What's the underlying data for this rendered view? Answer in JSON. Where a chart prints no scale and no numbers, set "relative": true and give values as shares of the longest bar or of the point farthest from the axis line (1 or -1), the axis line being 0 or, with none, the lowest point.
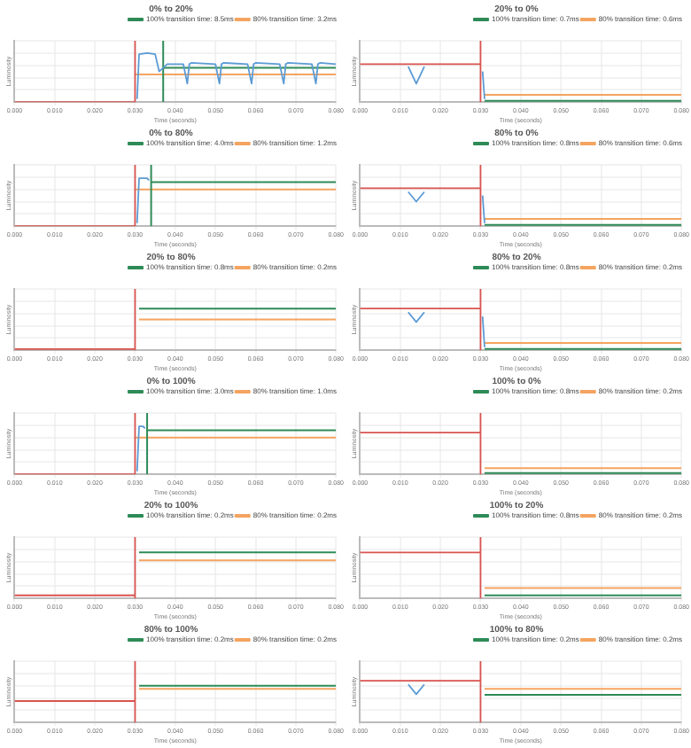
{
  "chart_data": [
    {
      "type": "line",
      "title": "0% to 20%",
      "xlabel": "Time (seconds)",
      "ylabel": "Luminosity",
      "relative": true,
      "grid": true,
      "legend": "top right",
      "marker": "none",
      "line_style": "solid",
      "xlim": [
        0,
        0.08
      ],
      "xticks": [
        {
          "value": 0,
          "label": "0.000"
        },
        {
          "value": 0.01,
          "label": "0.010"
        },
        {
          "value": 0.02,
          "label": "0.020"
        },
        {
          "value": 0.03,
          "label": "0.030"
        },
        {
          "value": 0.04,
          "label": "0.040"
        },
        {
          "value": 0.05,
          "label": "0.050"
        },
        {
          "value": 0.06,
          "label": "0.060"
        },
        {
          "value": 0.07,
          "label": "0.070"
        },
        {
          "value": 0.08,
          "label": "0.080"
        }
      ],
      "series": [
        {
          "color": "#5b9bd5",
          "x": [
            0.0305,
            0.031,
            0.033,
            0.035,
            0.036,
            0.038,
            0.042,
            0.043,
            0.0435,
            0.044,
            0.05,
            0.051,
            0.0515,
            0.052,
            0.058,
            0.059,
            0.0595,
            0.06,
            0.066,
            0.067,
            0.0675,
            0.068,
            0.074,
            0.075,
            0.0755,
            0.076,
            0.08
          ],
          "values": [
            0.05,
            0.78,
            0.8,
            0.78,
            0.5,
            0.62,
            0.62,
            0.3,
            0.62,
            0.64,
            0.62,
            0.3,
            0.62,
            0.64,
            0.62,
            0.3,
            0.62,
            0.64,
            0.62,
            0.3,
            0.62,
            0.64,
            0.62,
            0.3,
            0.62,
            0.64,
            0.62
          ]
        },
        {
          "color": "#d9534f",
          "x": [
            0,
            0.03,
            0.03
          ],
          "values": [
            0,
            0,
            1
          ]
        },
        {
          "name": "100% transition time: 8.5ms",
          "color": "#2e8b57",
          "x": [
            0.037,
            0.037,
            0.037,
            0.08
          ],
          "values": [
            0,
            1,
            0.56,
            0.56
          ]
        },
        {
          "name": "80% transition time: 3.2ms",
          "color": "#f4a460",
          "x": [
            0.03,
            0.08
          ],
          "values": [
            0.45,
            0.45
          ]
        }
      ]
    },
    {
      "type": "line",
      "title": "20% to 0%",
      "xlabel": "Time (seconds)",
      "ylabel": "Luminosity",
      "relative": true,
      "grid": true,
      "legend": "top right",
      "marker": "none",
      "line_style": "solid",
      "xlim": [
        0,
        0.08
      ],
      "xticks": [
        {
          "value": 0,
          "label": "0.000"
        },
        {
          "value": 0.01,
          "label": "0.010"
        },
        {
          "value": 0.02,
          "label": "0.020"
        },
        {
          "value": 0.03,
          "label": "0.030"
        },
        {
          "value": 0.04,
          "label": "0.040"
        },
        {
          "value": 0.05,
          "label": "0.050"
        },
        {
          "value": 0.06,
          "label": "0.060"
        },
        {
          "value": 0.07,
          "label": "0.070"
        },
        {
          "value": 0.08,
          "label": "0.080"
        }
      ],
      "series": [
        {
          "color": "#5b9bd5",
          "x": [
            0.012,
            0.014,
            0.016,
            0.02,
            0.0305,
            0.031
          ],
          "values": [
            0.58,
            0.3,
            0.58,
            null,
            0.5,
            0.05
          ]
        },
        {
          "color": "#d9534f",
          "x": [
            0,
            0.03,
            0.03,
            0.03
          ],
          "values": [
            0.62,
            0.62,
            0,
            1
          ]
        },
        {
          "name": "100% transition time: 0.7ms",
          "color": "#2e8b57",
          "x": [
            0.031,
            0.08
          ],
          "values": [
            0.02,
            0.02
          ]
        },
        {
          "name": "80% transition time: 0.6ms",
          "color": "#f4a460",
          "x": [
            0.031,
            0.08
          ],
          "values": [
            0.12,
            0.12
          ]
        }
      ]
    },
    {
      "type": "line",
      "title": "0% to 80%",
      "xlabel": "Time (seconds)",
      "ylabel": "Luminosity",
      "relative": true,
      "grid": true,
      "legend": "top right",
      "marker": "none",
      "line_style": "solid",
      "xlim": [
        0,
        0.08
      ],
      "xticks": [
        {
          "value": 0,
          "label": "0.000"
        },
        {
          "value": 0.01,
          "label": "0.010"
        },
        {
          "value": 0.02,
          "label": "0.020"
        },
        {
          "value": 0.03,
          "label": "0.030"
        },
        {
          "value": 0.04,
          "label": "0.040"
        },
        {
          "value": 0.05,
          "label": "0.050"
        },
        {
          "value": 0.06,
          "label": "0.060"
        },
        {
          "value": 0.07,
          "label": "0.070"
        },
        {
          "value": 0.08,
          "label": "0.080"
        }
      ],
      "series": [
        {
          "color": "#5b9bd5",
          "x": [
            0.0305,
            0.031,
            0.033,
            0.0335
          ],
          "values": [
            0.05,
            0.78,
            0.78,
            0.75
          ]
        },
        {
          "color": "#d9534f",
          "x": [
            0,
            0.03,
            0.03
          ],
          "values": [
            0,
            0,
            1
          ]
        },
        {
          "name": "100% transition time: 4.0ms",
          "color": "#2e8b57",
          "x": [
            0.034,
            0.034,
            0.034,
            0.08
          ],
          "values": [
            0,
            1,
            0.72,
            0.72
          ]
        },
        {
          "name": "80% transition time: 1.2ms",
          "color": "#f4a460",
          "x": [
            0.03,
            0.08
          ],
          "values": [
            0.6,
            0.6
          ]
        }
      ]
    },
    {
      "type": "line",
      "title": "80% to 0%",
      "xlabel": "Time (seconds)",
      "ylabel": "Luminosity",
      "relative": true,
      "grid": true,
      "legend": "top right",
      "marker": "none",
      "line_style": "solid",
      "xlim": [
        0,
        0.08
      ],
      "xticks": [
        {
          "value": 0,
          "label": "0.000"
        },
        {
          "value": 0.01,
          "label": "0.010"
        },
        {
          "value": 0.02,
          "label": "0.020"
        },
        {
          "value": 0.03,
          "label": "0.030"
        },
        {
          "value": 0.04,
          "label": "0.040"
        },
        {
          "value": 0.05,
          "label": "0.050"
        },
        {
          "value": 0.06,
          "label": "0.060"
        },
        {
          "value": 0.07,
          "label": "0.070"
        },
        {
          "value": 0.08,
          "label": "0.080"
        }
      ],
      "series": [
        {
          "color": "#5b9bd5",
          "x": [
            0.012,
            0.014,
            0.016,
            0.02,
            0.0305,
            0.031
          ],
          "values": [
            0.56,
            0.4,
            0.56,
            null,
            0.5,
            0.05
          ]
        },
        {
          "color": "#d9534f",
          "x": [
            0,
            0.03,
            0.03,
            0.03
          ],
          "values": [
            0.62,
            0.62,
            0,
            1
          ]
        },
        {
          "name": "100% transition time: 0.8ms",
          "color": "#2e8b57",
          "x": [
            0.031,
            0.08
          ],
          "values": [
            0.02,
            0.02
          ]
        },
        {
          "name": "80% transition time: 0.6ms",
          "color": "#f4a460",
          "x": [
            0.031,
            0.08
          ],
          "values": [
            0.12,
            0.12
          ]
        }
      ]
    },
    {
      "type": "line",
      "title": "20% to 80%",
      "xlabel": "Time (seconds)",
      "ylabel": "Luminosity",
      "relative": true,
      "grid": true,
      "legend": "top right",
      "marker": "none",
      "line_style": "solid",
      "xlim": [
        0,
        0.08
      ],
      "xticks": [
        {
          "value": 0,
          "label": "0.000"
        },
        {
          "value": 0.01,
          "label": "0.010"
        },
        {
          "value": 0.02,
          "label": "0.020"
        },
        {
          "value": 0.03,
          "label": "0.030"
        },
        {
          "value": 0.04,
          "label": "0.040"
        },
        {
          "value": 0.05,
          "label": "0.050"
        },
        {
          "value": 0.06,
          "label": "0.060"
        },
        {
          "value": 0.07,
          "label": "0.070"
        },
        {
          "value": 0.08,
          "label": "0.080"
        }
      ],
      "series": [
        {
          "color": "#d9534f",
          "x": [
            0,
            0.03,
            0.03,
            0.03
          ],
          "values": [
            0.02,
            0.02,
            0,
            1
          ]
        },
        {
          "name": "100% transition time: 0.8ms",
          "color": "#2e8b57",
          "x": [
            0.031,
            0.08
          ],
          "values": [
            0.68,
            0.68
          ]
        },
        {
          "name": "80% transition time: 0.2ms",
          "color": "#f4a460",
          "x": [
            0.031,
            0.08
          ],
          "values": [
            0.5,
            0.5
          ]
        }
      ]
    },
    {
      "type": "line",
      "title": "80% to 20%",
      "xlabel": "Time (seconds)",
      "ylabel": "Luminosity",
      "relative": true,
      "grid": true,
      "legend": "top right",
      "marker": "none",
      "line_style": "solid",
      "xlim": [
        0,
        0.08
      ],
      "xticks": [
        {
          "value": 0,
          "label": "0.000"
        },
        {
          "value": 0.01,
          "label": "0.010"
        },
        {
          "value": 0.02,
          "label": "0.020"
        },
        {
          "value": 0.03,
          "label": "0.030"
        },
        {
          "value": 0.04,
          "label": "0.040"
        },
        {
          "value": 0.05,
          "label": "0.050"
        },
        {
          "value": 0.06,
          "label": "0.060"
        },
        {
          "value": 0.07,
          "label": "0.070"
        },
        {
          "value": 0.08,
          "label": "0.080"
        }
      ],
      "series": [
        {
          "color": "#5b9bd5",
          "x": [
            0.012,
            0.014,
            0.016,
            0.02,
            0.0305,
            0.031
          ],
          "values": [
            0.62,
            0.46,
            0.62,
            null,
            0.55,
            0.05
          ]
        },
        {
          "color": "#d9534f",
          "x": [
            0,
            0.03,
            0.03,
            0.03
          ],
          "values": [
            0.68,
            0.68,
            0,
            1
          ]
        },
        {
          "name": "100% transition time: 0.8ms",
          "color": "#2e8b57",
          "x": [
            0.031,
            0.08
          ],
          "values": [
            0.02,
            0.02
          ]
        },
        {
          "name": "80% transition time: 0.2ms",
          "color": "#f4a460",
          "x": [
            0.031,
            0.08
          ],
          "values": [
            0.12,
            0.12
          ]
        }
      ]
    },
    {
      "type": "line",
      "title": "0% to 100%",
      "xlabel": "Time (seconds)",
      "ylabel": "Luminosity",
      "relative": true,
      "grid": true,
      "legend": "top right",
      "marker": "none",
      "line_style": "solid",
      "xlim": [
        0,
        0.08
      ],
      "xticks": [
        {
          "value": 0,
          "label": "0.000"
        },
        {
          "value": 0.01,
          "label": "0.010"
        },
        {
          "value": 0.02,
          "label": "0.020"
        },
        {
          "value": 0.03,
          "label": "0.030"
        },
        {
          "value": 0.04,
          "label": "0.040"
        },
        {
          "value": 0.05,
          "label": "0.050"
        },
        {
          "value": 0.06,
          "label": "0.060"
        },
        {
          "value": 0.07,
          "label": "0.070"
        },
        {
          "value": 0.08,
          "label": "0.080"
        }
      ],
      "series": [
        {
          "color": "#5b9bd5",
          "x": [
            0.0305,
            0.031,
            0.032,
            0.0325
          ],
          "values": [
            0.05,
            0.78,
            0.78,
            0.75
          ]
        },
        {
          "color": "#d9534f",
          "x": [
            0,
            0.03,
            0.03
          ],
          "values": [
            0,
            0,
            1
          ]
        },
        {
          "name": "100% transition time: 3.0ms",
          "color": "#2e8b57",
          "x": [
            0.033,
            0.033,
            0.033,
            0.08
          ],
          "values": [
            0,
            1,
            0.72,
            0.72
          ]
        },
        {
          "name": "80% transition time: 1.0ms",
          "color": "#f4a460",
          "x": [
            0.03,
            0.08
          ],
          "values": [
            0.6,
            0.6
          ]
        }
      ]
    },
    {
      "type": "line",
      "title": "100% to 0%",
      "xlabel": "Time (seconds)",
      "ylabel": "Luminosity",
      "relative": true,
      "grid": true,
      "legend": "top right",
      "marker": "none",
      "line_style": "solid",
      "xlim": [
        0,
        0.08
      ],
      "xticks": [
        {
          "value": 0,
          "label": "0.000"
        },
        {
          "value": 0.01,
          "label": "0.010"
        },
        {
          "value": 0.02,
          "label": "0.020"
        },
        {
          "value": 0.03,
          "label": "0.030"
        },
        {
          "value": 0.04,
          "label": "0.040"
        },
        {
          "value": 0.05,
          "label": "0.050"
        },
        {
          "value": 0.06,
          "label": "0.060"
        },
        {
          "value": 0.07,
          "label": "0.070"
        },
        {
          "value": 0.08,
          "label": "0.080"
        }
      ],
      "series": [
        {
          "color": "#d9534f",
          "x": [
            0,
            0.03,
            0.03,
            0.03
          ],
          "values": [
            0.68,
            0.68,
            0,
            1
          ]
        },
        {
          "name": "100% transition time: 0.8ms",
          "color": "#2e8b57",
          "x": [
            0.031,
            0.08
          ],
          "values": [
            0.02,
            0.02
          ]
        },
        {
          "name": "80% transition time: 0.2ms",
          "color": "#f4a460",
          "x": [
            0.031,
            0.08
          ],
          "values": [
            0.1,
            0.1
          ]
        }
      ]
    },
    {
      "type": "line",
      "title": "20% to 100%",
      "xlabel": "Time (seconds)",
      "ylabel": "Luminosity",
      "relative": true,
      "grid": true,
      "legend": "top right",
      "marker": "none",
      "line_style": "solid",
      "xlim": [
        0,
        0.08
      ],
      "xticks": [
        {
          "value": 0,
          "label": "0.000"
        },
        {
          "value": 0.01,
          "label": "0.010"
        },
        {
          "value": 0.02,
          "label": "0.020"
        },
        {
          "value": 0.03,
          "label": "0.030"
        },
        {
          "value": 0.04,
          "label": "0.040"
        },
        {
          "value": 0.05,
          "label": "0.050"
        },
        {
          "value": 0.06,
          "label": "0.060"
        },
        {
          "value": 0.07,
          "label": "0.070"
        },
        {
          "value": 0.08,
          "label": "0.080"
        }
      ],
      "series": [
        {
          "color": "#d9534f",
          "x": [
            0,
            0.03,
            0.03,
            0.03
          ],
          "values": [
            0.05,
            0.05,
            1,
            0
          ]
        },
        {
          "name": "100% transition time: 0.2ms",
          "color": "#2e8b57",
          "x": [
            0.031,
            0.08
          ],
          "values": [
            0.75,
            0.75
          ]
        },
        {
          "name": "80% transition time: 0.2ms",
          "color": "#f4a460",
          "x": [
            0.031,
            0.08
          ],
          "values": [
            0.62,
            0.62
          ]
        }
      ]
    },
    {
      "type": "line",
      "title": "100% to 20%",
      "xlabel": "Time (seconds)",
      "ylabel": "Luminosity",
      "relative": true,
      "grid": true,
      "legend": "top right",
      "marker": "none",
      "line_style": "solid",
      "xlim": [
        0,
        0.08
      ],
      "xticks": [
        {
          "value": 0,
          "label": "0.000"
        },
        {
          "value": 0.01,
          "label": "0.010"
        },
        {
          "value": 0.02,
          "label": "0.020"
        },
        {
          "value": 0.03,
          "label": "0.030"
        },
        {
          "value": 0.04,
          "label": "0.040"
        },
        {
          "value": 0.05,
          "label": "0.050"
        },
        {
          "value": 0.06,
          "label": "0.060"
        },
        {
          "value": 0.07,
          "label": "0.070"
        },
        {
          "value": 0.08,
          "label": "0.080"
        }
      ],
      "series": [
        {
          "color": "#d9534f",
          "x": [
            0,
            0.03,
            0.03,
            0.03
          ],
          "values": [
            0.75,
            0.75,
            0,
            1
          ]
        },
        {
          "name": "100% transition time: 0.8ms",
          "color": "#2e8b57",
          "x": [
            0.031,
            0.08
          ],
          "values": [
            0.05,
            0.05
          ]
        },
        {
          "name": "80% transition time: 0.2ms",
          "color": "#f4a460",
          "x": [
            0.031,
            0.08
          ],
          "values": [
            0.17,
            0.17
          ]
        }
      ]
    },
    {
      "type": "line",
      "title": "80% to 100%",
      "xlabel": "Time (seconds)",
      "ylabel": "Luminosity",
      "relative": true,
      "grid": true,
      "legend": "top right",
      "marker": "none",
      "line_style": "solid",
      "xlim": [
        0,
        0.08
      ],
      "xticks": [
        {
          "value": 0,
          "label": "0.000"
        },
        {
          "value": 0.01,
          "label": "0.010"
        },
        {
          "value": 0.02,
          "label": "0.020"
        },
        {
          "value": 0.03,
          "label": "0.030"
        },
        {
          "value": 0.04,
          "label": "0.040"
        },
        {
          "value": 0.05,
          "label": "0.050"
        },
        {
          "value": 0.06,
          "label": "0.060"
        },
        {
          "value": 0.07,
          "label": "0.070"
        },
        {
          "value": 0.08,
          "label": "0.080"
        }
      ],
      "series": [
        {
          "color": "#d9534f",
          "x": [
            0,
            0.03,
            0.03,
            0.03
          ],
          "values": [
            0.35,
            0.35,
            1,
            0
          ]
        },
        {
          "name": "100% transition time: 0.2ms",
          "color": "#2e8b57",
          "x": [
            0.031,
            0.08
          ],
          "values": [
            0.6,
            0.6
          ]
        },
        {
          "name": "80% transition time: 0.2ms",
          "color": "#f4a460",
          "x": [
            0.031,
            0.08
          ],
          "values": [
            0.55,
            0.55
          ]
        }
      ]
    },
    {
      "type": "line",
      "title": "100% to 80%",
      "xlabel": "Time (seconds)",
      "ylabel": "Luminosity",
      "relative": true,
      "grid": true,
      "legend": "top right",
      "marker": "none",
      "line_style": "solid",
      "xlim": [
        0,
        0.08
      ],
      "xticks": [
        {
          "value": 0,
          "label": "0.000"
        },
        {
          "value": 0.01,
          "label": "0.010"
        },
        {
          "value": 0.02,
          "label": "0.020"
        },
        {
          "value": 0.03,
          "label": "0.030"
        },
        {
          "value": 0.04,
          "label": "0.040"
        },
        {
          "value": 0.05,
          "label": "0.050"
        },
        {
          "value": 0.06,
          "label": "0.060"
        },
        {
          "value": 0.07,
          "label": "0.070"
        },
        {
          "value": 0.08,
          "label": "0.080"
        }
      ],
      "series": [
        {
          "color": "#5b9bd5",
          "x": [
            0.012,
            0.014,
            0.016
          ],
          "values": [
            0.62,
            0.46,
            0.62
          ]
        },
        {
          "color": "#d9534f",
          "x": [
            0,
            0.03,
            0.03,
            0.03
          ],
          "values": [
            0.68,
            0.68,
            0,
            1
          ]
        },
        {
          "name": "100% transition time: 0.2ms",
          "color": "#2e8b57",
          "x": [
            0.031,
            0.08
          ],
          "values": [
            0.45,
            0.45
          ]
        },
        {
          "name": "80% transition time: 0.2ms",
          "color": "#f4a460",
          "x": [
            0.031,
            0.08
          ],
          "values": [
            0.55,
            0.55
          ]
        }
      ]
    }
  ]
}
